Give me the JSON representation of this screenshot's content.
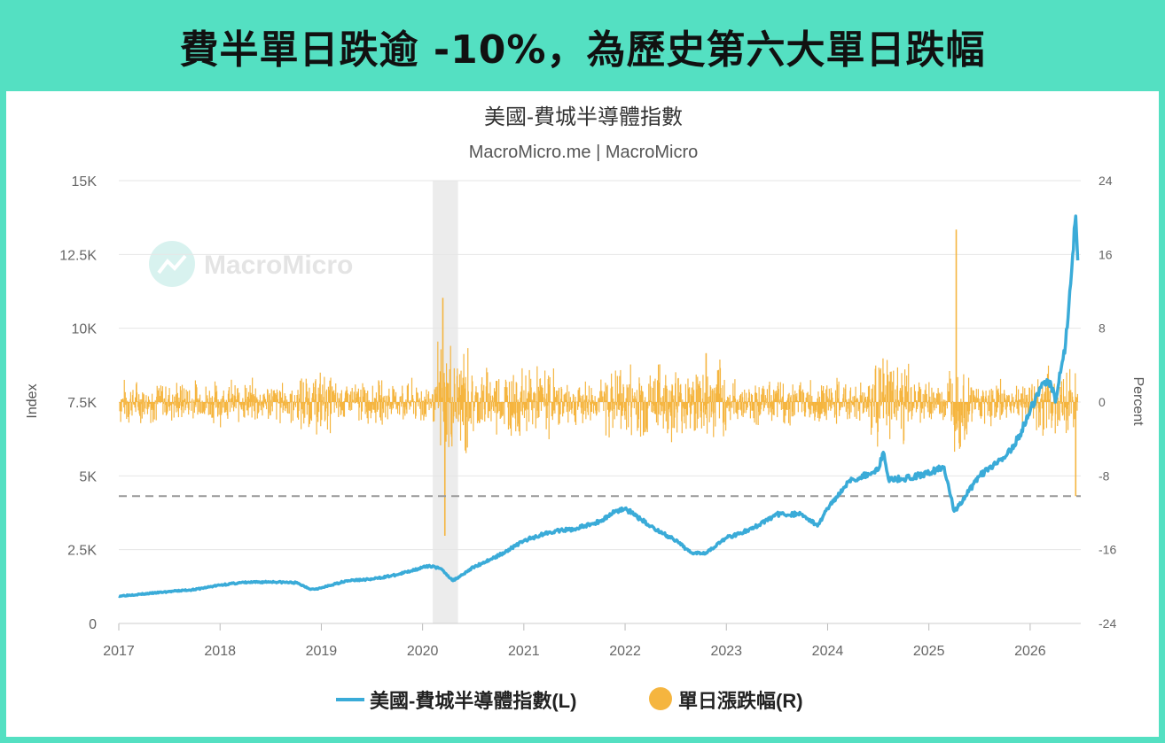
{
  "headline": "費半單日跌逾 -10%，為歷史第六大單日跌幅",
  "colors": {
    "frame": "#54e0c2",
    "index_line": "#3aabd8",
    "daily_change_bars": "#f5b53f",
    "reference_line": "#999999",
    "recession_band": "#ececec"
  },
  "watermark": "MacroMicro",
  "chart_data": {
    "type": "line",
    "title": "美國-費城半導體指數",
    "subtitle": "MacroMicro.me | MacroMicro",
    "xlabel": "",
    "ylabel_left": "Index",
    "ylabel_right": "Percent",
    "xlim": [
      2017.0,
      2026.5
    ],
    "x_ticks": [
      "2017",
      "2018",
      "2019",
      "2020",
      "2021",
      "2022",
      "2023",
      "2024",
      "2025",
      "2026"
    ],
    "ylim_left": [
      0,
      15000
    ],
    "y_ticks_left": [
      "0",
      "2.5K",
      "5K",
      "7.5K",
      "10K",
      "12.5K",
      "15K"
    ],
    "ylim_right": [
      -24,
      24
    ],
    "y_ticks_right": [
      "-24",
      "-16",
      "-8",
      "0",
      "8",
      "16",
      "24"
    ],
    "grid": true,
    "legend_position": "bottom-center",
    "shaded_period": [
      2020.1,
      2020.35
    ],
    "reference_line_right": -10.2,
    "series": [
      {
        "name": "美國-費城半導體指數(L)",
        "axis": "left",
        "type": "line",
        "x": [
          2017.0,
          2017.25,
          2017.5,
          2017.75,
          2018.0,
          2018.2,
          2018.5,
          2018.75,
          2018.9,
          2019.0,
          2019.25,
          2019.5,
          2019.75,
          2020.0,
          2020.1,
          2020.2,
          2020.3,
          2020.5,
          2020.75,
          2021.0,
          2021.25,
          2021.5,
          2021.75,
          2021.9,
          2022.0,
          2022.25,
          2022.5,
          2022.65,
          2022.8,
          2023.0,
          2023.25,
          2023.5,
          2023.75,
          2023.9,
          2024.0,
          2024.2,
          2024.5,
          2024.55,
          2024.6,
          2024.75,
          2025.0,
          2025.15,
          2025.25,
          2025.3,
          2025.5,
          2025.75,
          2025.9,
          2026.0,
          2026.1,
          2026.2,
          2026.25,
          2026.3,
          2026.35,
          2026.4,
          2026.42,
          2026.45,
          2026.47
        ],
        "values": [
          930,
          1000,
          1080,
          1150,
          1300,
          1380,
          1410,
          1380,
          1160,
          1200,
          1450,
          1500,
          1650,
          1900,
          1950,
          1800,
          1450,
          1900,
          2300,
          2800,
          3100,
          3200,
          3450,
          3800,
          3900,
          3300,
          2800,
          2400,
          2400,
          2900,
          3200,
          3700,
          3700,
          3300,
          3900,
          4800,
          5200,
          5800,
          4900,
          4900,
          5100,
          5300,
          3800,
          4000,
          5000,
          5600,
          6400,
          7200,
          8000,
          8200,
          7500,
          8500,
          9500,
          11500,
          12500,
          13800,
          12300
        ]
      },
      {
        "name": "單日漲跌幅(R)",
        "axis": "right",
        "type": "bar",
        "notable_values": [
          {
            "x": 2020.2,
            "value": 11.3
          },
          {
            "x": 2020.22,
            "value": -14.5
          },
          {
            "x": 2025.27,
            "value": 18.7
          },
          {
            "x": 2022.8,
            "value": 5.3
          },
          {
            "x": 2026.45,
            "value": -10.2
          }
        ]
      }
    ]
  }
}
